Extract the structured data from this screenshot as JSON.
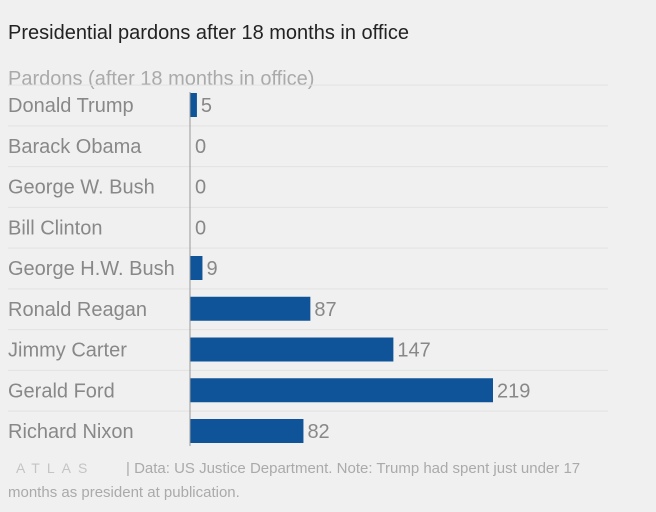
{
  "title": "Presidential pardons after 18 months in office",
  "chart_data": {
    "type": "bar",
    "orientation": "horizontal",
    "title": "Presidential pardons after 18 months in office",
    "xlabel": "Pardons (after 18 months in office)",
    "ylabel": "",
    "categories": [
      "Donald Trump",
      "Barack Obama",
      "George W. Bush",
      "Bill Clinton",
      "George H.W. Bush",
      "Ronald Reagan",
      "Jimmy Carter",
      "Gerald Ford",
      "Richard Nixon"
    ],
    "values": [
      5,
      0,
      0,
      0,
      9,
      87,
      147,
      219,
      82
    ],
    "xlim": [
      0,
      219
    ],
    "grid": true,
    "legend": "none",
    "bar_color": "#0f5499"
  },
  "footer": {
    "logo": "ATLAS",
    "source_text": "| Data: US Justice Department. Note: Trump had spent just under 17 months as president at publication."
  }
}
